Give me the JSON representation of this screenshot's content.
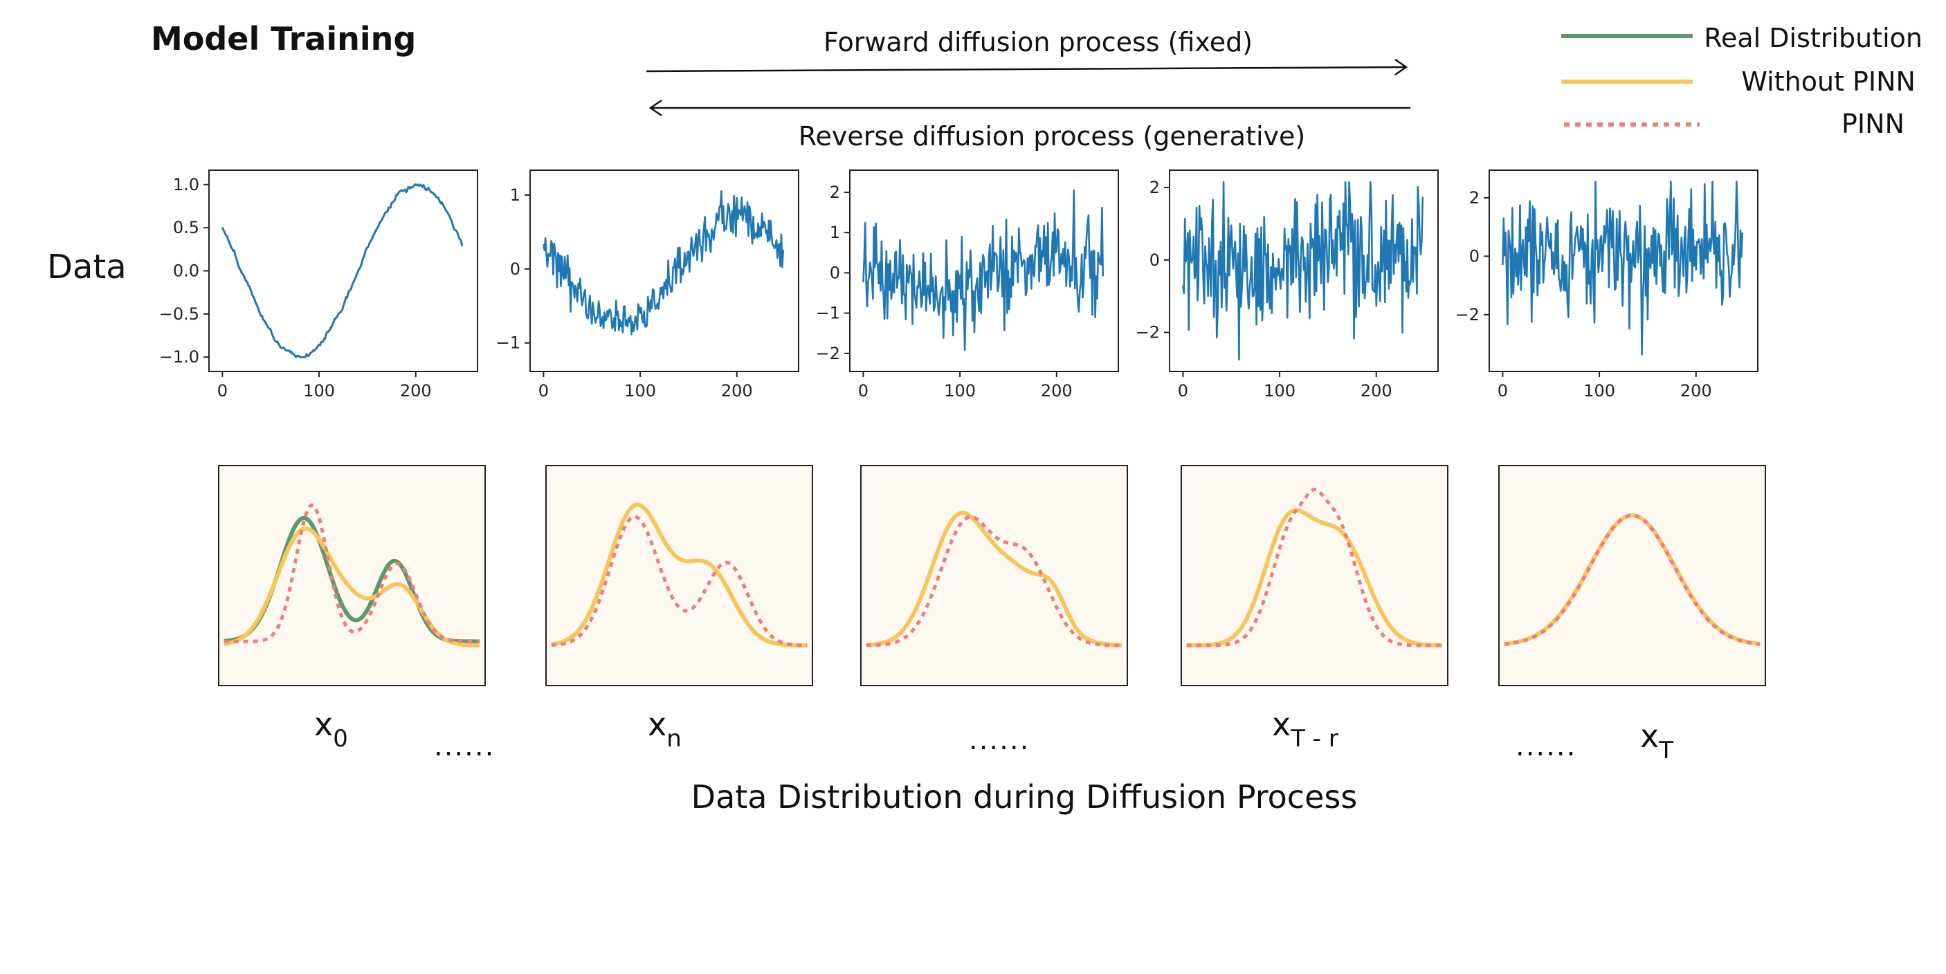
{
  "title": "Model Training",
  "forward_label": "Forward diffusion process (fixed)",
  "reverse_label": "Reverse diffusion process (generative)",
  "row_label": "Data",
  "bottom_caption": "Data Distribution during Diffusion Process",
  "legend": [
    {
      "label": "Real Distribution",
      "color": "#5a9a68",
      "style": "solid"
    },
    {
      "label": "Without PINN",
      "color": "#f7c65a",
      "style": "solid"
    },
    {
      "label": "PINN",
      "color": "#ee7d7d",
      "style": "dotted"
    }
  ],
  "ellipsis": "......",
  "stage_labels": [
    {
      "main": "x",
      "sub": "0"
    },
    {
      "main": "x",
      "sub": "n"
    },
    {
      "main": "x",
      "sub": "T - r"
    },
    {
      "main": "x",
      "sub": "T"
    }
  ],
  "colors": {
    "series": "#1f77b4",
    "panel_bg": "#fdf9f0"
  },
  "chart_data": [
    {
      "type": "line",
      "title": "",
      "x": [
        0,
        250
      ],
      "xticks": [
        "0",
        "100",
        "200"
      ],
      "yticks": [
        "1.0",
        "0.5",
        "0.0",
        "−0.5",
        "−1.0"
      ],
      "ylim": [
        -1.05,
        1.05
      ],
      "noise": 0.03,
      "shape": "clean cosine wave"
    },
    {
      "type": "line",
      "title": "",
      "x": [
        0,
        250
      ],
      "xticks": [
        "0",
        "100",
        "200"
      ],
      "yticks": [
        "1",
        "0",
        "−1"
      ],
      "ylim": [
        -1.25,
        1.2
      ],
      "noise": 0.15,
      "shape": "noisy cosine wave"
    },
    {
      "type": "line",
      "title": "",
      "x": [
        0,
        250
      ],
      "xticks": [
        "0",
        "100",
        "200"
      ],
      "yticks": [
        "2",
        "1",
        "0",
        "−1",
        "−2"
      ],
      "ylim": [
        -2.2,
        2.3
      ],
      "noise": 0.6,
      "shape": "mostly noise"
    },
    {
      "type": "line",
      "title": "",
      "x": [
        0,
        250
      ],
      "xticks": [
        "0",
        "100",
        "200"
      ],
      "yticks": [
        "2",
        "0",
        "−2"
      ],
      "ylim": [
        -2.8,
        2.2
      ],
      "noise": 0.9,
      "shape": "noise"
    },
    {
      "type": "line",
      "title": "",
      "x": [
        0,
        250
      ],
      "xticks": [
        "0",
        "100",
        "200"
      ],
      "yticks": [
        "2",
        "0",
        "−2"
      ],
      "ylim": [
        -3.6,
        2.6
      ],
      "noise": 1.0,
      "shape": "noise"
    }
  ]
}
